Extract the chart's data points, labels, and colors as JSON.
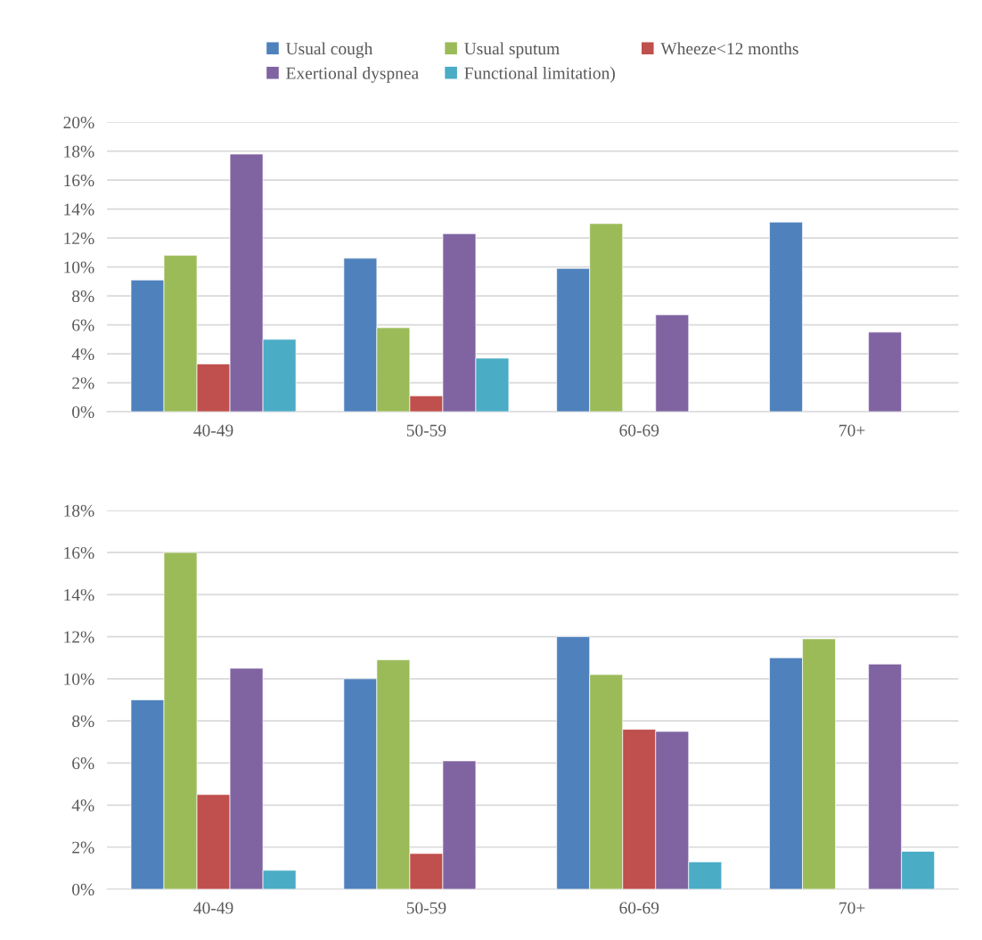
{
  "chart_data": [
    {
      "type": "bar",
      "categories": [
        "40-49",
        "50-59",
        "60-69",
        "70+"
      ],
      "series": [
        {
          "name": "Usual cough",
          "color": "#4f81bd",
          "values": [
            9.1,
            10.6,
            9.9,
            13.1
          ]
        },
        {
          "name": "Usual sputum",
          "color": "#9bbb59",
          "values": [
            10.8,
            5.8,
            13.0,
            null
          ]
        },
        {
          "name": "Wheeze<12 months",
          "color": "#c0504d",
          "values": [
            3.3,
            1.1,
            null,
            null
          ]
        },
        {
          "name": "Exertional dyspnea",
          "color": "#8064a2",
          "values": [
            17.8,
            12.3,
            6.7,
            5.5
          ]
        },
        {
          "name": "Functional limitation)",
          "color": "#4bacc6",
          "values": [
            5.0,
            3.7,
            null,
            null
          ]
        }
      ],
      "ylim": [
        0,
        20
      ],
      "yticks": [
        {
          "value": 0,
          "label": "0%"
        },
        {
          "value": 2,
          "label": "2%"
        },
        {
          "value": 4,
          "label": "4%"
        },
        {
          "value": 6,
          "label": "6%"
        },
        {
          "value": 8,
          "label": "8%"
        },
        {
          "value": 10,
          "label": "10%"
        },
        {
          "value": 12,
          "label": "12%"
        },
        {
          "value": 14,
          "label": "14%"
        },
        {
          "value": 16,
          "label": "16%"
        },
        {
          "value": 18,
          "label": "18%"
        },
        {
          "value": 20,
          "label": "20%"
        }
      ],
      "grid": "y",
      "legend": "top"
    },
    {
      "type": "bar",
      "categories": [
        "40-49",
        "50-59",
        "60-69",
        "70+"
      ],
      "series": [
        {
          "color": "#4f81bd",
          "values": [
            9.0,
            10.0,
            12.0,
            11.0
          ]
        },
        {
          "color": "#9bbb59",
          "values": [
            16.0,
            10.9,
            10.2,
            11.9
          ]
        },
        {
          "color": "#c0504d",
          "values": [
            4.5,
            1.7,
            7.6,
            null
          ]
        },
        {
          "color": "#8064a2",
          "values": [
            10.5,
            6.1,
            7.5,
            10.7
          ]
        },
        {
          "color": "#4bacc6",
          "values": [
            0.9,
            null,
            1.3,
            1.8
          ]
        }
      ],
      "ylim": [
        0,
        18
      ],
      "yticks": [
        {
          "value": 0,
          "label": "0%"
        },
        {
          "value": 2,
          "label": "2%"
        },
        {
          "value": 4,
          "label": "4%"
        },
        {
          "value": 6,
          "label": "6%"
        },
        {
          "value": 8,
          "label": "8%"
        },
        {
          "value": 10,
          "label": "10%"
        },
        {
          "value": 12,
          "label": "12%"
        },
        {
          "value": 14,
          "label": "14%"
        },
        {
          "value": 16,
          "label": "16%"
        },
        {
          "value": 18,
          "label": "18%"
        }
      ],
      "grid": "y"
    }
  ]
}
